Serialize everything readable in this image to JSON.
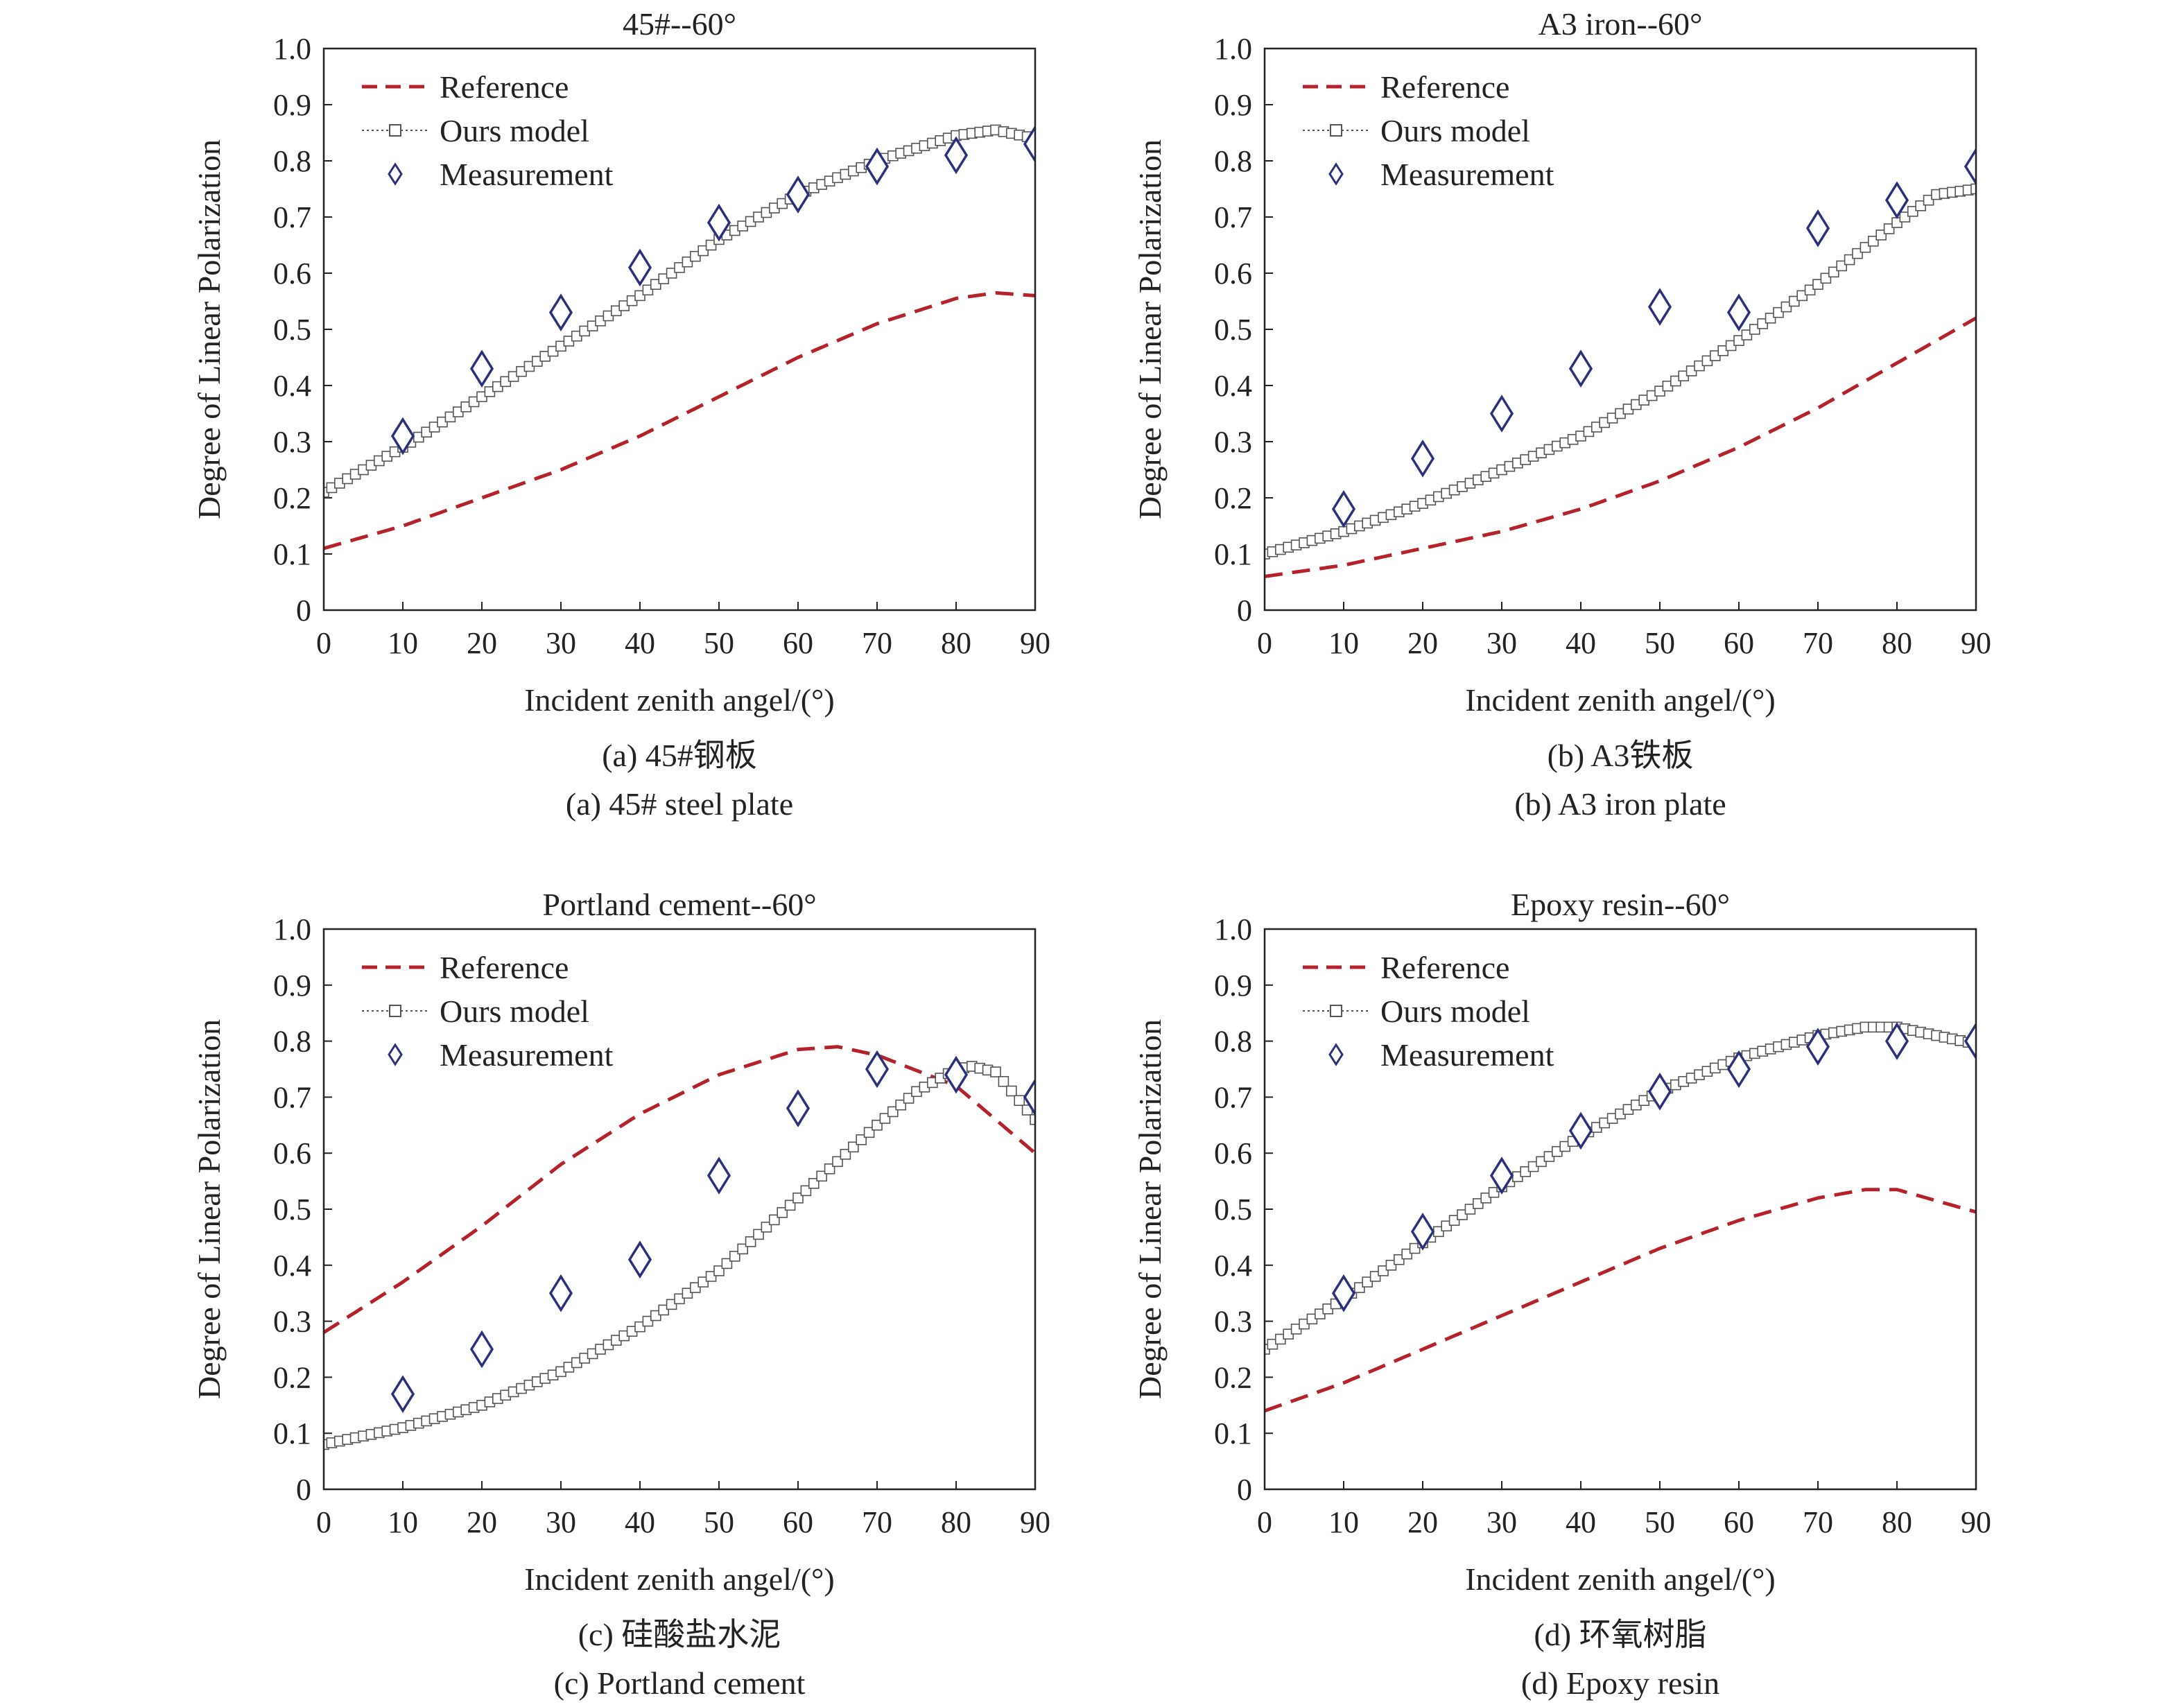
{
  "figure": {
    "x_axis_label": "Incident zenith angel/(°)",
    "y_axis_label": "Degree of Linear Polarization",
    "legend": {
      "reference": "Reference",
      "model": "Ours model",
      "measurement": "Measurement"
    },
    "colors": {
      "reference": "#b5222c",
      "model": "#555555",
      "measurement": "#2c2f7a",
      "axis": "#222222"
    }
  },
  "chart_data": [
    {
      "type": "line",
      "title": "45#--60°",
      "caption_cn": "(a) 45#钢板",
      "caption_en": "(a) 45# steel plate",
      "xlabel": "Incident zenith angel/(°)",
      "ylabel": "Degree of Linear Polarization",
      "xlim": [
        0,
        90
      ],
      "ylim": [
        0,
        1.0
      ],
      "xticks": [
        "0",
        "10",
        "20",
        "30",
        "40",
        "50",
        "60",
        "70",
        "80",
        "90"
      ],
      "yticks": [
        "0",
        "0.1",
        "0.2",
        "0.3",
        "0.4",
        "0.5",
        "0.6",
        "0.7",
        "0.8",
        "0.9",
        "1.0"
      ],
      "legend_position": "top-left",
      "series": [
        {
          "name": "Reference",
          "style": "dashed-line",
          "x": [
            0,
            10,
            20,
            30,
            40,
            50,
            60,
            70,
            80,
            85,
            90
          ],
          "y": [
            0.11,
            0.15,
            0.2,
            0.25,
            0.31,
            0.38,
            0.45,
            0.51,
            0.555,
            0.565,
            0.56
          ]
        },
        {
          "name": "Ours model",
          "style": "line-square-markers",
          "x": [
            0,
            10,
            20,
            30,
            40,
            50,
            60,
            70,
            80,
            85,
            90
          ],
          "y": [
            0.21,
            0.29,
            0.38,
            0.47,
            0.56,
            0.66,
            0.74,
            0.8,
            0.845,
            0.855,
            0.84
          ]
        },
        {
          "name": "Measurement",
          "style": "diamond-markers",
          "x": [
            10,
            20,
            30,
            40,
            50,
            60,
            70,
            80,
            90
          ],
          "y": [
            0.31,
            0.43,
            0.53,
            0.61,
            0.69,
            0.74,
            0.79,
            0.81,
            0.83
          ]
        }
      ]
    },
    {
      "type": "line",
      "title": "A3 iron--60°",
      "caption_cn": "(b) A3铁板",
      "caption_en": "(b) A3 iron plate",
      "xlabel": "Incident zenith angel/(°)",
      "ylabel": "Degree of Linear Polarization",
      "xlim": [
        0,
        90
      ],
      "ylim": [
        0,
        1.0
      ],
      "xticks": [
        "0",
        "10",
        "20",
        "30",
        "40",
        "50",
        "60",
        "70",
        "80",
        "90"
      ],
      "yticks": [
        "0",
        "0.1",
        "0.2",
        "0.3",
        "0.4",
        "0.5",
        "0.6",
        "0.7",
        "0.8",
        "0.9",
        "1.0"
      ],
      "legend_position": "top-left",
      "series": [
        {
          "name": "Reference",
          "style": "dashed-line",
          "x": [
            0,
            10,
            20,
            30,
            40,
            50,
            60,
            70,
            80,
            90
          ],
          "y": [
            0.06,
            0.08,
            0.11,
            0.14,
            0.18,
            0.23,
            0.29,
            0.36,
            0.44,
            0.52
          ]
        },
        {
          "name": "Ours model",
          "style": "line-square-markers",
          "x": [
            0,
            10,
            20,
            30,
            40,
            50,
            60,
            70,
            80,
            85,
            90
          ],
          "y": [
            0.1,
            0.14,
            0.19,
            0.25,
            0.31,
            0.39,
            0.48,
            0.58,
            0.69,
            0.74,
            0.75
          ]
        },
        {
          "name": "Measurement",
          "style": "diamond-markers",
          "x": [
            10,
            20,
            30,
            40,
            50,
            60,
            70,
            80,
            90
          ],
          "y": [
            0.18,
            0.27,
            0.35,
            0.43,
            0.54,
            0.53,
            0.68,
            0.73,
            0.79
          ]
        }
      ]
    },
    {
      "type": "line",
      "title": "Portland cement--60°",
      "caption_cn": "(c) 硅酸盐水泥",
      "caption_en": "(c) Portland cement",
      "xlabel": "Incident zenith angel/(°)",
      "ylabel": "Degree of Linear Polarization",
      "xlim": [
        0,
        90
      ],
      "ylim": [
        0,
        1.0
      ],
      "xticks": [
        "0",
        "10",
        "20",
        "30",
        "40",
        "50",
        "60",
        "70",
        "80",
        "90"
      ],
      "yticks": [
        "0",
        "0.1",
        "0.2",
        "0.3",
        "0.4",
        "0.5",
        "0.6",
        "0.7",
        "0.8",
        "0.9",
        "1.0"
      ],
      "legend_position": "top-left",
      "series": [
        {
          "name": "Reference",
          "style": "dashed-line",
          "x": [
            0,
            10,
            20,
            30,
            40,
            50,
            60,
            65,
            70,
            80,
            90
          ],
          "y": [
            0.28,
            0.37,
            0.47,
            0.58,
            0.67,
            0.74,
            0.785,
            0.79,
            0.775,
            0.72,
            0.6
          ]
        },
        {
          "name": "Ours model",
          "style": "line-square-markers",
          "x": [
            0,
            10,
            20,
            30,
            40,
            50,
            60,
            70,
            75,
            80,
            82,
            85,
            90
          ],
          "y": [
            0.08,
            0.11,
            0.15,
            0.21,
            0.29,
            0.39,
            0.52,
            0.65,
            0.71,
            0.75,
            0.755,
            0.745,
            0.66
          ]
        },
        {
          "name": "Measurement",
          "style": "diamond-markers",
          "x": [
            10,
            20,
            30,
            40,
            50,
            60,
            70,
            80,
            90
          ],
          "y": [
            0.17,
            0.25,
            0.35,
            0.41,
            0.56,
            0.68,
            0.75,
            0.74,
            0.7
          ]
        }
      ]
    },
    {
      "type": "line",
      "title": "Epoxy resin--60°",
      "caption_cn": "(d) 环氧树脂",
      "caption_en": "(d) Epoxy resin",
      "xlabel": "Incident zenith angel/(°)",
      "ylabel": "Degree of Linear Polarization",
      "xlim": [
        0,
        90
      ],
      "ylim": [
        0,
        1.0
      ],
      "xticks": [
        "0",
        "10",
        "20",
        "30",
        "40",
        "50",
        "60",
        "70",
        "80",
        "90"
      ],
      "yticks": [
        "0",
        "0.1",
        "0.2",
        "0.3",
        "0.4",
        "0.5",
        "0.6",
        "0.7",
        "0.8",
        "0.9",
        "1.0"
      ],
      "legend_position": "top-left",
      "series": [
        {
          "name": "Reference",
          "style": "dashed-line",
          "x": [
            0,
            10,
            20,
            30,
            40,
            50,
            60,
            70,
            76,
            80,
            90
          ],
          "y": [
            0.14,
            0.19,
            0.25,
            0.31,
            0.37,
            0.43,
            0.48,
            0.52,
            0.535,
            0.535,
            0.495
          ]
        },
        {
          "name": "Ours model",
          "style": "line-square-markers",
          "x": [
            0,
            10,
            20,
            30,
            40,
            50,
            60,
            70,
            76,
            80,
            90
          ],
          "y": [
            0.25,
            0.34,
            0.44,
            0.54,
            0.63,
            0.71,
            0.77,
            0.81,
            0.825,
            0.825,
            0.795
          ]
        },
        {
          "name": "Measurement",
          "style": "diamond-markers",
          "x": [
            10,
            20,
            30,
            40,
            50,
            60,
            70,
            80,
            90
          ],
          "y": [
            0.35,
            0.46,
            0.56,
            0.64,
            0.71,
            0.75,
            0.79,
            0.8,
            0.8
          ]
        }
      ]
    }
  ]
}
